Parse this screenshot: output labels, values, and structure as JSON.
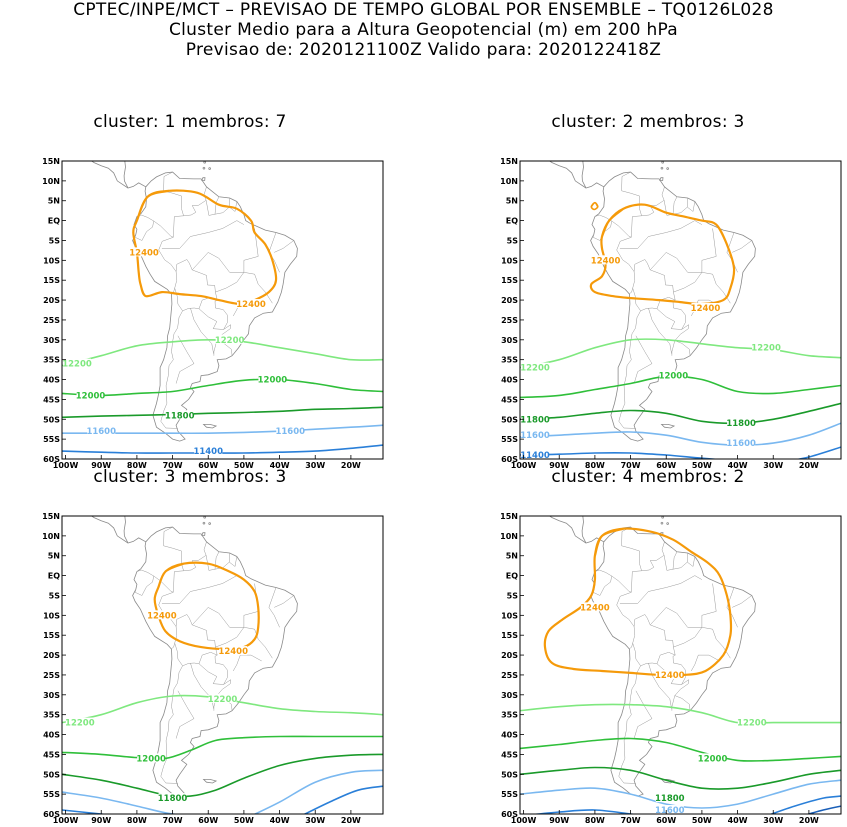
{
  "header": {
    "line1": "CPTEC/INPE/MCT – PREVISAO DE TEMPO GLOBAL POR ENSEMBLE – TQ0126L028",
    "line2": "Cluster Medio para a Altura Geopotencial (m) em 200 hPa",
    "line3": "Previsao de: 2020121100Z   Valido para: 2020122418Z"
  },
  "axes": {
    "lat_labels": [
      "15N",
      "10N",
      "5N",
      "EQ",
      "5S",
      "10S",
      "15S",
      "20S",
      "25S",
      "30S",
      "35S",
      "40S",
      "45S",
      "50S",
      "55S",
      "60S"
    ],
    "lon_labels": [
      "100W",
      "90W",
      "80W",
      "70W",
      "60W",
      "50W",
      "40W",
      "30W",
      "20W"
    ]
  },
  "colors": {
    "c12400": "#f59a0a",
    "c12200": "#7fe87f",
    "c12000": "#2fbf3a",
    "c11800": "#1a9a2a",
    "c11600": "#7ab8f0",
    "c11400": "#2a7fd8",
    "c11200": "#1a5fb8"
  },
  "panels": [
    {
      "title": "cluster: 1   membros: 7",
      "labels": [
        {
          "text": "12400",
          "color": "c12400",
          "lon": -78,
          "lat": -8
        },
        {
          "text": "12400",
          "color": "c12400",
          "lon": -48,
          "lat": -21
        },
        {
          "text": "12200",
          "color": "c12200",
          "lon": -100,
          "lat": -36
        },
        {
          "text": "12200",
          "color": "c12200",
          "lon": -54,
          "lat": -30
        },
        {
          "text": "12000",
          "color": "c12000",
          "lon": -93,
          "lat": -44
        },
        {
          "text": "12000",
          "color": "c12000",
          "lon": -42,
          "lat": -40
        },
        {
          "text": "11800",
          "color": "c11800",
          "lon": -68,
          "lat": -49
        },
        {
          "text": "11600",
          "color": "c11600",
          "lon": -90,
          "lat": -53
        },
        {
          "text": "11600",
          "color": "c11600",
          "lon": -37,
          "lat": -53
        },
        {
          "text": "11400",
          "color": "c11400",
          "lon": -60,
          "lat": -58
        }
      ]
    },
    {
      "title": "cluster: 2   membros: 3",
      "labels": [
        {
          "text": "12400",
          "color": "c12400",
          "lon": -77,
          "lat": -10
        },
        {
          "text": "12400",
          "color": "c12400",
          "lon": -49,
          "lat": -22
        },
        {
          "text": "12200",
          "color": "c12200",
          "lon": -100,
          "lat": -37
        },
        {
          "text": "12200",
          "color": "c12200",
          "lon": -32,
          "lat": -32
        },
        {
          "text": "12000",
          "color": "c12000",
          "lon": -58,
          "lat": -39
        },
        {
          "text": "11800",
          "color": "c11800",
          "lon": -100,
          "lat": -50
        },
        {
          "text": "11800",
          "color": "c11800",
          "lon": -39,
          "lat": -51
        },
        {
          "text": "11600",
          "color": "c11600",
          "lon": -100,
          "lat": -54
        },
        {
          "text": "11600",
          "color": "c11600",
          "lon": -39,
          "lat": -56
        },
        {
          "text": "11400",
          "color": "c11400",
          "lon": -100,
          "lat": -59
        }
      ]
    },
    {
      "title": "cluster: 3   membros: 3",
      "labels": [
        {
          "text": "12400",
          "color": "c12400",
          "lon": -73,
          "lat": -10
        },
        {
          "text": "12400",
          "color": "c12400",
          "lon": -53,
          "lat": -19
        },
        {
          "text": "12200",
          "color": "c12200",
          "lon": -96,
          "lat": -37
        },
        {
          "text": "12200",
          "color": "c12200",
          "lon": -56,
          "lat": -31
        },
        {
          "text": "12000",
          "color": "c12000",
          "lon": -76,
          "lat": -46
        },
        {
          "text": "11800",
          "color": "c11800",
          "lon": -70,
          "lat": -56
        }
      ]
    },
    {
      "title": "cluster: 4   membros: 2",
      "labels": [
        {
          "text": "12400",
          "color": "c12400",
          "lon": -80,
          "lat": -8
        },
        {
          "text": "12400",
          "color": "c12400",
          "lon": -59,
          "lat": -25
        },
        {
          "text": "12200",
          "color": "c12200",
          "lon": -36,
          "lat": -37
        },
        {
          "text": "12000",
          "color": "c12000",
          "lon": -47,
          "lat": -46
        },
        {
          "text": "11800",
          "color": "c11800",
          "lon": -59,
          "lat": -56
        },
        {
          "text": "11600",
          "color": "c11600",
          "lon": -59,
          "lat": -59
        }
      ]
    }
  ]
}
